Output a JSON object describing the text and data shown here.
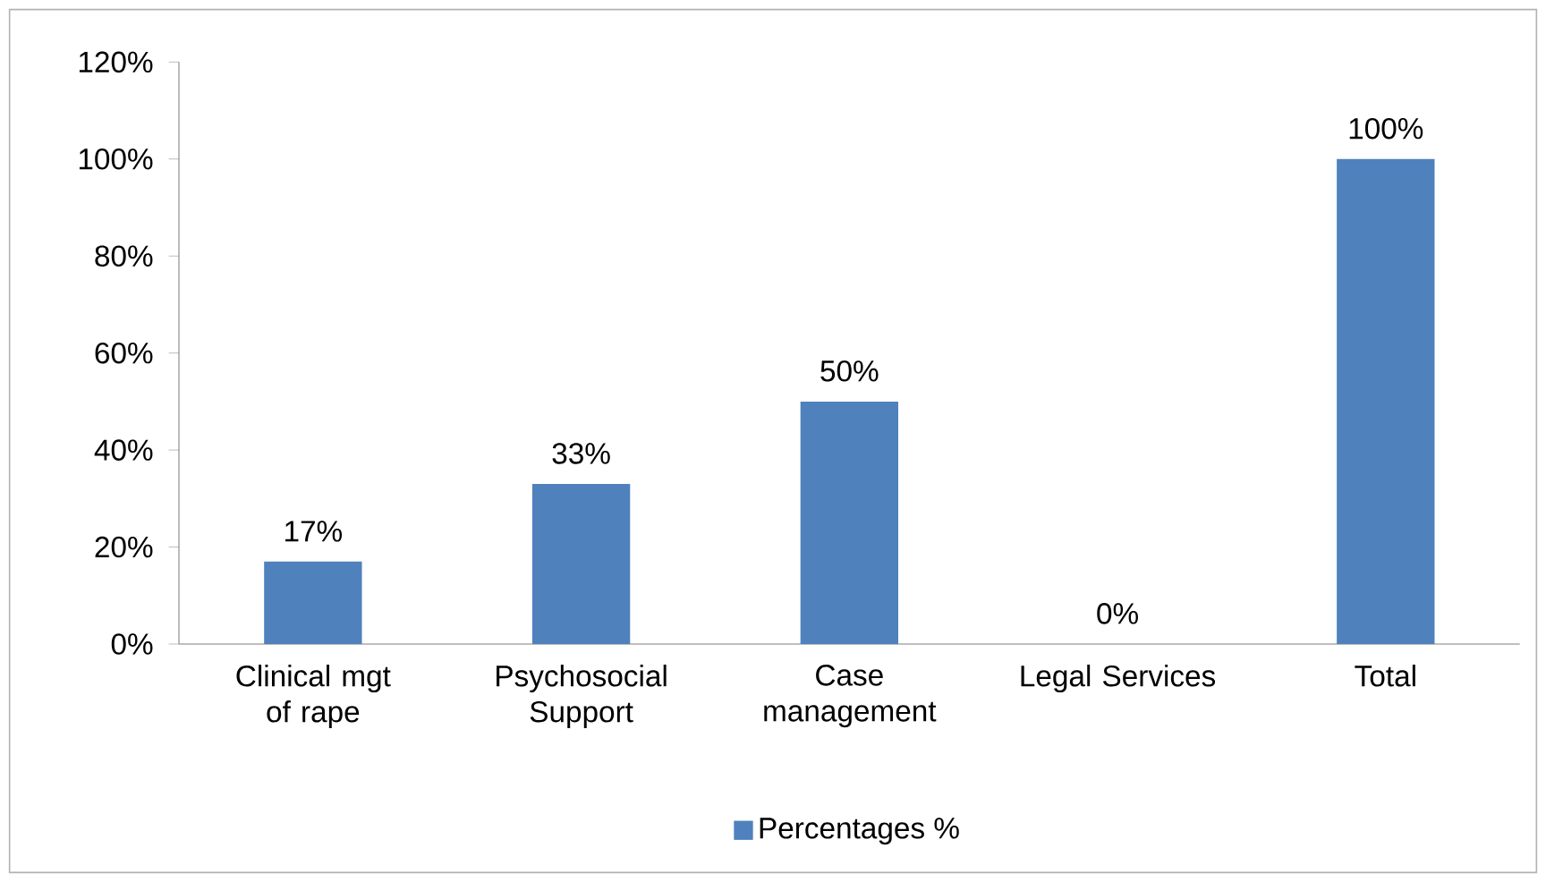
{
  "chart_data": {
    "type": "bar",
    "categories": [
      "Clinical mgt of rape",
      "Psychosocial Support",
      "Case management",
      "Legal Services",
      "Total"
    ],
    "series": [
      {
        "name": "Percentages %",
        "color": "#4f81bd",
        "values": [
          17,
          33,
          50,
          0,
          100
        ],
        "value_labels": [
          "17%",
          "33%",
          "50%",
          "0%",
          "100%"
        ]
      }
    ],
    "ylim": [
      0,
      120
    ],
    "yticks": [
      {
        "value": 0,
        "label": "0%"
      },
      {
        "value": 20,
        "label": "20%"
      },
      {
        "value": 40,
        "label": "40%"
      },
      {
        "value": 60,
        "label": "60%"
      },
      {
        "value": 80,
        "label": "80%"
      },
      {
        "value": 100,
        "label": "100%"
      },
      {
        "value": 120,
        "label": "120%"
      }
    ],
    "grid": false,
    "legend": "bottom"
  }
}
